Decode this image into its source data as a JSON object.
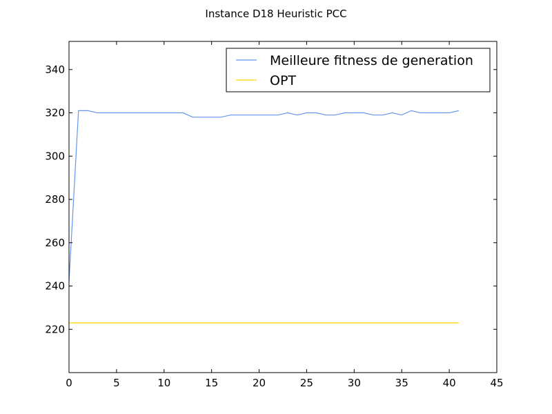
{
  "chart_data": {
    "type": "line",
    "title": "Instance D18 Heuristic PCC",
    "xlabel": "",
    "ylabel": "",
    "xlim": [
      0,
      45
    ],
    "ylim": [
      200,
      353
    ],
    "xticks": [
      0,
      5,
      10,
      15,
      20,
      25,
      30,
      35,
      40,
      45
    ],
    "yticks": [
      220,
      240,
      260,
      280,
      300,
      320,
      340
    ],
    "grid": false,
    "legend_position": "top-right",
    "series": [
      {
        "name": "Meilleure fitness de generation",
        "color": "#6495ED",
        "x": [
          0,
          1,
          2,
          3,
          4,
          5,
          6,
          7,
          8,
          9,
          10,
          11,
          12,
          13,
          14,
          15,
          16,
          17,
          18,
          19,
          20,
          21,
          22,
          23,
          24,
          25,
          26,
          27,
          28,
          29,
          30,
          31,
          32,
          33,
          34,
          35,
          36,
          37,
          38,
          39,
          40,
          41
        ],
        "y": [
          242,
          321,
          321,
          320,
          320,
          320,
          320,
          320,
          320,
          320,
          320,
          320,
          320,
          318,
          318,
          318,
          318,
          319,
          319,
          319,
          319,
          319,
          319,
          320,
          319,
          320,
          320,
          319,
          319,
          320,
          320,
          320,
          319,
          319,
          320,
          319,
          321,
          320,
          320,
          320,
          320,
          321
        ]
      },
      {
        "name": "OPT",
        "color": "#FFD700",
        "x": [
          0,
          41
        ],
        "y": [
          223,
          223
        ]
      }
    ]
  }
}
